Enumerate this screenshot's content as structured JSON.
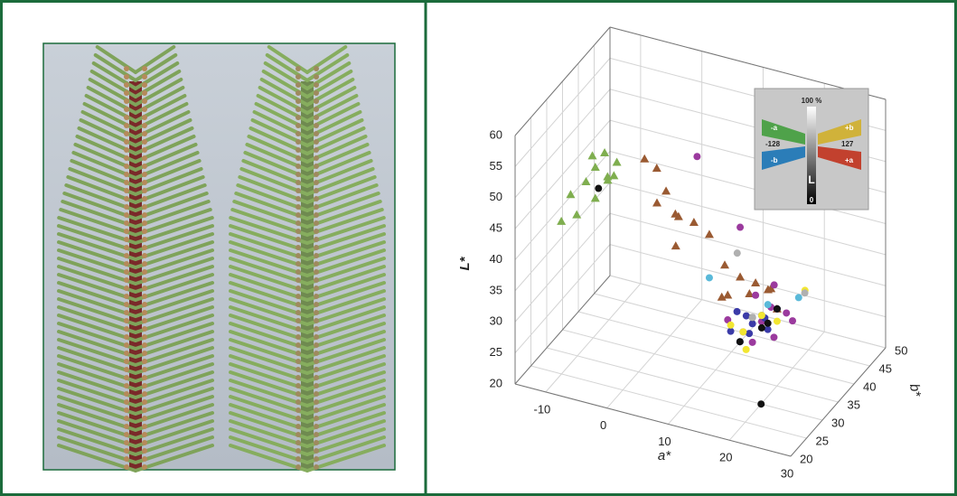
{
  "chart_data": {
    "type": "scatter3d",
    "x_label": "a*",
    "y_label": "b*",
    "z_label": "L*",
    "xlim": [
      -15,
      30
    ],
    "ylim": [
      20,
      50
    ],
    "zlim": [
      20,
      60
    ],
    "xticks": [
      -10,
      0,
      10,
      20,
      30
    ],
    "yticks": [
      20,
      25,
      30,
      35,
      40,
      45,
      50
    ],
    "zticks": [
      20,
      25,
      30,
      35,
      40,
      45,
      50,
      55,
      60
    ],
    "grid": true,
    "series": [
      {
        "marker": "triangle",
        "color": "#7fae4f",
        "a": [
          -6,
          -5,
          -4,
          -3,
          -6,
          -4,
          -8,
          -7,
          -5,
          -2,
          -3,
          -9
        ],
        "b": [
          27,
          26,
          27,
          26,
          25,
          28,
          24,
          24,
          26,
          27,
          28,
          23
        ],
        "L": [
          55,
          54,
          56,
          53,
          52,
          51,
          50,
          47,
          49,
          55,
          52,
          46
        ]
      },
      {
        "marker": "triangle",
        "color": "#9a5a32",
        "a": [
          2,
          4,
          5,
          3,
          6,
          6,
          8,
          10,
          4,
          12,
          14,
          16,
          13,
          18,
          15,
          11,
          17,
          19
        ],
        "b": [
          28,
          28,
          29,
          30,
          30,
          31,
          32,
          33,
          34,
          34,
          35,
          36,
          33,
          37,
          36,
          35,
          38,
          37
        ],
        "L": [
          56,
          55,
          51,
          48,
          47,
          46,
          45,
          43,
          39,
          38,
          36,
          35,
          34,
          34,
          33,
          32,
          33,
          31
        ]
      },
      {
        "marker": "circle",
        "color": "#9b3a9e",
        "a": [
          8,
          14,
          16,
          18,
          20,
          17,
          15,
          19,
          21,
          13,
          16,
          18
        ],
        "b": [
          33,
          35,
          36,
          37,
          38,
          36,
          34,
          36,
          38,
          33,
          35,
          38
        ],
        "L": [
          55,
          44,
          33,
          31,
          30,
          29,
          28,
          27,
          29,
          30,
          26,
          34
        ]
      },
      {
        "marker": "circle",
        "color": "#3b3ba8",
        "a": [
          14,
          15,
          16,
          17,
          18,
          15,
          16,
          17,
          19,
          14
        ],
        "b": [
          34,
          35,
          35,
          36,
          36,
          33,
          34,
          37,
          37,
          32
        ],
        "L": [
          31,
          30,
          29,
          30,
          28,
          27,
          28,
          29,
          31,
          29
        ]
      },
      {
        "marker": "circle",
        "color": "#f2e632",
        "a": [
          15,
          17,
          19,
          16,
          22,
          14
        ],
        "b": [
          34,
          36,
          37,
          33,
          40,
          32
        ],
        "L": [
          28,
          30,
          29,
          26,
          33,
          30
        ]
      },
      {
        "marker": "circle",
        "color": "#111111",
        "a": [
          -5,
          16,
          17,
          18,
          15,
          20,
          19
        ],
        "b": [
          27,
          35,
          36,
          36,
          33,
          30,
          37
        ],
        "L": [
          50,
          30,
          28,
          29,
          27,
          20,
          31
        ]
      },
      {
        "marker": "circle",
        "color": "#5ab9d9",
        "a": [
          10,
          22,
          18
        ],
        "b": [
          33,
          38,
          36
        ],
        "L": [
          36,
          33,
          32
        ]
      },
      {
        "marker": "circle",
        "color": "#b0b0b0",
        "a": [
          13,
          23,
          16
        ],
        "b": [
          36,
          38,
          35
        ],
        "L": [
          39,
          34,
          30
        ]
      }
    ],
    "inset": {
      "top": "100 %",
      "minus_a": "-a",
      "plus_b": "+b",
      "min": "-128",
      "max": "127",
      "minus_b": "-b",
      "plus_a": "+a",
      "L": "L",
      "bottom": "0"
    }
  }
}
